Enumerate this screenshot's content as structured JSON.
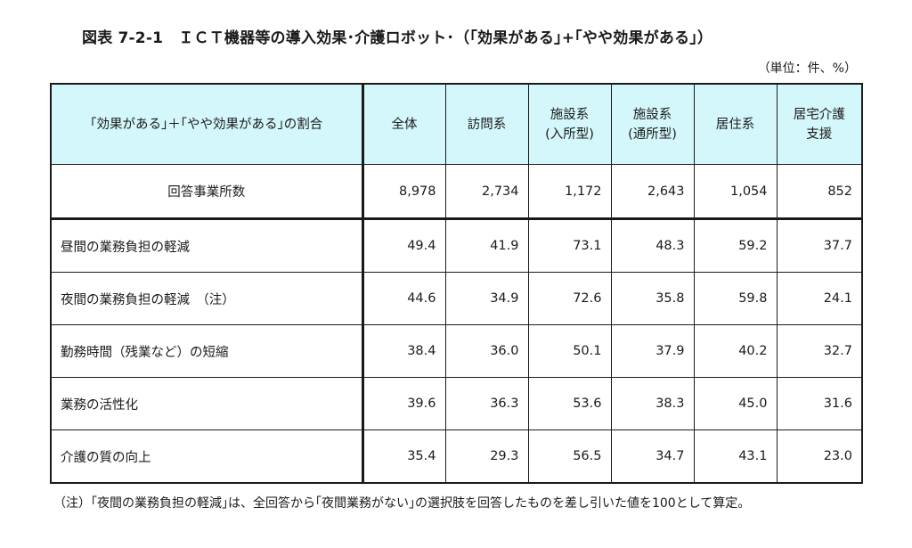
{
  "title": "図表 7-2-1　ＩＣＴ機器等の導入効果･介護ロボット･（｢効果がある｣+｢やや効果がある｣）",
  "unit": "（単位：件、%）",
  "table": {
    "header": {
      "row_label": "｢効果がある｣＋｢やや効果がある｣の割合",
      "columns": [
        {
          "line1": "全体",
          "line2": ""
        },
        {
          "line1": "訪問系",
          "line2": ""
        },
        {
          "line1": "施設系",
          "line2": "(入所型)"
        },
        {
          "line1": "施設系",
          "line2": "(通所型)"
        },
        {
          "line1": "居住系",
          "line2": ""
        },
        {
          "line1": "居宅介護",
          "line2": "支援"
        }
      ]
    },
    "count_row": {
      "label": "回答事業所数",
      "values": [
        "8,978",
        "2,734",
        "1,172",
        "2,643",
        "1,054",
        "852"
      ]
    },
    "rows": [
      {
        "label": "昼間の業務負担の軽減",
        "values": [
          "49.4",
          "41.9",
          "73.1",
          "48.3",
          "59.2",
          "37.7"
        ]
      },
      {
        "label": "夜間の業務負担の軽減　（注）",
        "values": [
          "44.6",
          "34.9",
          "72.6",
          "35.8",
          "59.8",
          "24.1"
        ]
      },
      {
        "label": "勤務時間（残業など）の短縮",
        "values": [
          "38.4",
          "36.0",
          "50.1",
          "37.9",
          "40.2",
          "32.7"
        ]
      },
      {
        "label": "業務の活性化",
        "values": [
          "39.6",
          "36.3",
          "53.6",
          "38.3",
          "45.0",
          "31.6"
        ]
      },
      {
        "label": "介護の質の向上",
        "values": [
          "35.4",
          "29.3",
          "56.5",
          "34.7",
          "43.1",
          "23.0"
        ]
      }
    ]
  },
  "note": "（注）｢夜間の業務負担の軽減｣は、全回答から｢夜間業務がない｣の選択肢を回答したものを差し引いた値を100として算定。",
  "colors": {
    "header_bg": "#d4f7fb",
    "border": "#1a1a1a"
  }
}
